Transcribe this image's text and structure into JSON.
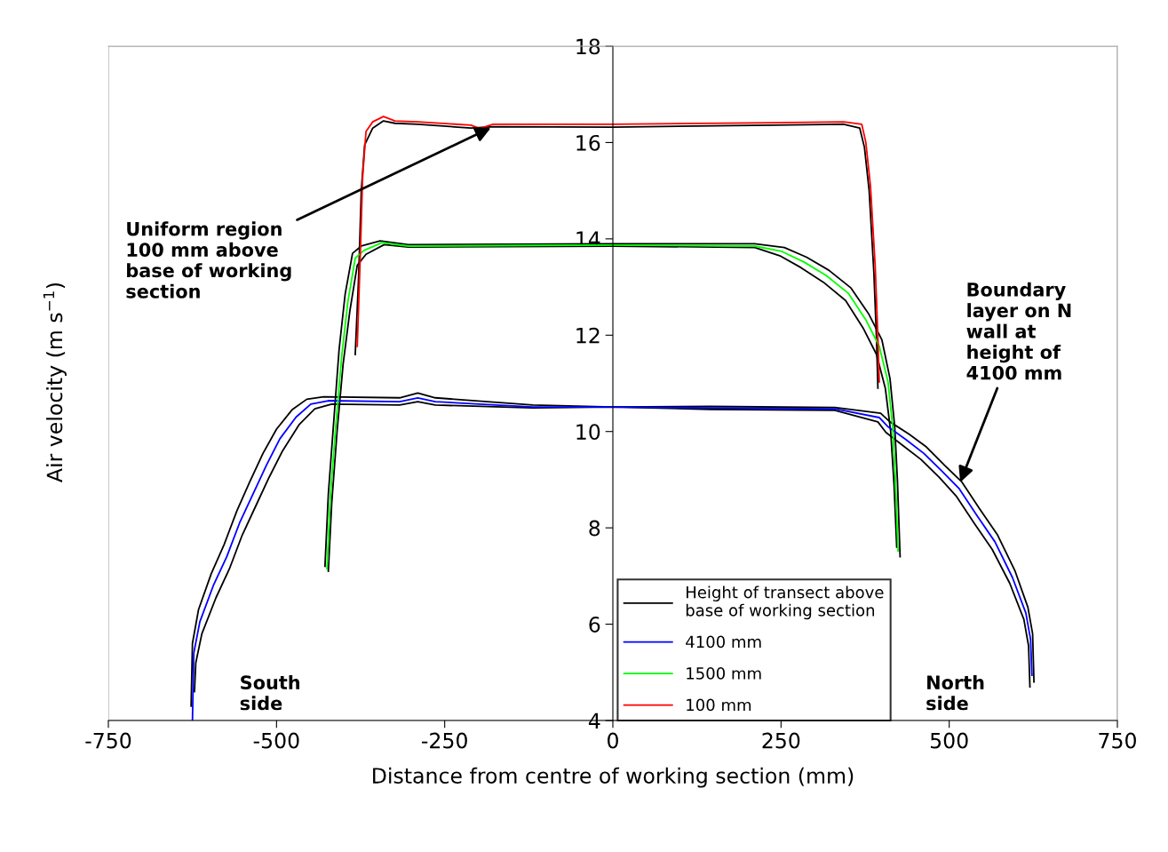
{
  "chart_data": {
    "type": "line",
    "xlabel": "Distance from centre of working section (mm)",
    "ylabel": "Air velocity (m s$^{−1}$)",
    "xlim": [
      -750,
      750
    ],
    "ylim": [
      4,
      18
    ],
    "xticks": [
      -750,
      -500,
      -250,
      0,
      250,
      500,
      750
    ],
    "yticks": [
      4,
      6,
      8,
      10,
      12,
      14,
      16,
      18
    ],
    "grid": false,
    "legend": "bottom",
    "marker": "none",
    "line_style": "solid",
    "series": [
      {
        "name": "Height of transect above\nbase of working section",
        "color": "#000000",
        "x": [
          -627,
          -625,
          -616,
          -597,
          -578,
          -559,
          -540,
          -520,
          -500,
          -477,
          -455,
          -430,
          -317,
          -290,
          -264,
          -119,
          0,
          145,
          330,
          398,
          412,
          440,
          466,
          493,
          519,
          545,
          572,
          598,
          617,
          624,
          626
        ],
        "values": [
          4.3,
          5.6,
          6.3,
          7.05,
          7.65,
          8.35,
          8.95,
          9.55,
          10.05,
          10.45,
          10.67,
          10.72,
          10.7,
          10.8,
          10.7,
          10.55,
          10.51,
          10.52,
          10.5,
          10.38,
          10.2,
          9.95,
          9.68,
          9.3,
          8.95,
          8.4,
          7.85,
          7.1,
          6.35,
          5.8,
          4.8
        ]
      },
      {
        "color": "#000000",
        "x": [
          -622,
          -620,
          -611,
          -590,
          -570,
          -551,
          -531,
          -511,
          -491,
          -466,
          -443,
          -418,
          -317,
          -290,
          -264,
          -119,
          0,
          145,
          330,
          394,
          406,
          432,
          458,
          485,
          511,
          537,
          564,
          590,
          611,
          618,
          620
        ],
        "values": [
          4.6,
          5.2,
          5.8,
          6.55,
          7.15,
          7.85,
          8.45,
          9.05,
          9.6,
          10.15,
          10.47,
          10.57,
          10.55,
          10.62,
          10.55,
          10.49,
          10.51,
          10.46,
          10.44,
          10.2,
          9.98,
          9.7,
          9.42,
          9.05,
          8.65,
          8.1,
          7.55,
          6.85,
          6.1,
          5.55,
          4.7
        ]
      },
      {
        "color": "#000000",
        "x": [
          -428,
          -423,
          -415,
          -407,
          -398,
          -387,
          -374,
          -346,
          -304,
          0,
          211,
          255,
          288,
          321,
          354,
          380,
          400,
          412,
          419,
          423,
          427
        ],
        "values": [
          7.2,
          8.7,
          10.2,
          11.7,
          12.85,
          13.7,
          13.85,
          13.96,
          13.88,
          13.9,
          13.9,
          13.82,
          13.62,
          13.35,
          12.98,
          12.45,
          11.9,
          11.1,
          10.1,
          9.0,
          7.4
        ]
      },
      {
        "color": "#000000",
        "x": [
          -423,
          -418,
          -410,
          -401,
          -391,
          -380,
          -367,
          -340,
          -304,
          0,
          211,
          248,
          280,
          313,
          346,
          372,
          392,
          405,
          413,
          418,
          422
        ],
        "values": [
          7.1,
          8.5,
          10.0,
          11.4,
          12.5,
          13.45,
          13.68,
          13.88,
          13.83,
          13.85,
          13.82,
          13.65,
          13.4,
          13.1,
          12.72,
          12.15,
          11.6,
          10.9,
          10.0,
          8.9,
          7.6
        ]
      },
      {
        "color": "#000000",
        "x": [
          -383,
          -378,
          -374,
          -369,
          -357,
          -341,
          -324,
          -290,
          -211,
          -178,
          0,
          238,
          343,
          367,
          374,
          381,
          388,
          392,
          394
        ],
        "values": [
          11.6,
          13.2,
          15.0,
          15.95,
          16.3,
          16.45,
          16.4,
          16.38,
          16.3,
          16.33,
          16.32,
          16.36,
          16.38,
          16.3,
          15.9,
          15.0,
          13.3,
          11.9,
          10.9
        ]
      },
      {
        "name": "4100 mm",
        "color": "#0000ff",
        "x": [
          -625,
          -623,
          -614,
          -594,
          -574,
          -555,
          -535,
          -515,
          -495,
          -471,
          -449,
          -423,
          -317,
          -290,
          -264,
          -119,
          0,
          145,
          330,
          396,
          409,
          436,
          462,
          489,
          515,
          541,
          568,
          594,
          614,
          621,
          623
        ],
        "values": [
          4.0,
          5.4,
          6.05,
          6.8,
          7.4,
          8.1,
          8.7,
          9.3,
          9.85,
          10.3,
          10.57,
          10.64,
          10.62,
          10.7,
          10.62,
          10.51,
          10.51,
          10.49,
          10.47,
          10.29,
          10.1,
          9.83,
          9.55,
          9.18,
          8.81,
          8.26,
          7.71,
          6.97,
          6.23,
          5.68,
          4.94
        ]
      },
      {
        "name": "1500 mm",
        "color": "#00ff00",
        "x": [
          -425,
          -420,
          -412,
          -403,
          -394,
          -383,
          -370,
          -343,
          -304,
          0,
          211,
          251,
          284,
          317,
          350,
          376,
          396,
          409,
          416,
          420,
          424
        ],
        "values": [
          7.15,
          8.63,
          10.1,
          11.58,
          12.69,
          13.6,
          13.76,
          13.92,
          13.85,
          13.87,
          13.85,
          13.74,
          13.52,
          13.24,
          12.87,
          12.32,
          11.77,
          11.03,
          10.1,
          9.0,
          7.52
        ]
      },
      {
        "name": "100 mm",
        "color": "#ff0000",
        "x": [
          -380,
          -376,
          -372,
          -367,
          -357,
          -341,
          -324,
          -290,
          -211,
          -198,
          -178,
          0,
          238,
          343,
          370,
          376,
          383,
          390,
          394,
          396
        ],
        "values": [
          11.77,
          13.43,
          15.27,
          16.23,
          16.43,
          16.54,
          16.45,
          16.43,
          16.36,
          16.29,
          16.38,
          16.38,
          16.41,
          16.43,
          16.38,
          16.01,
          15.09,
          13.43,
          11.95,
          11.03
        ]
      }
    ],
    "annotations": [
      {
        "text": "Uniform region\n100 mm above\nbase of working\nsection",
        "x": -178,
        "y": 16.33
      },
      {
        "text": "Boundary\nlayer on N\nwall at\nheight of\n4100 mm",
        "x": 515,
        "y": 8.9
      },
      "South\nside",
      "North\nside"
    ]
  }
}
